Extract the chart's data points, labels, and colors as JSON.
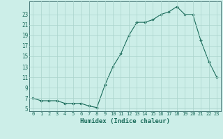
{
  "x": [
    0,
    1,
    2,
    3,
    4,
    5,
    6,
    7,
    8,
    9,
    10,
    11,
    12,
    13,
    14,
    15,
    16,
    17,
    18,
    19,
    20,
    21,
    22,
    23
  ],
  "y": [
    7.0,
    6.5,
    6.5,
    6.5,
    6.0,
    6.0,
    6.0,
    5.5,
    5.2,
    9.5,
    13.0,
    15.5,
    19.0,
    21.5,
    21.5,
    22.0,
    23.0,
    23.5,
    24.5,
    23.0,
    23.0,
    18.0,
    14.0,
    11.0
  ],
  "line_color": "#1a6b5a",
  "marker": "D",
  "marker_size": 2.0,
  "xlabel": "Humidex (Indice chaleur)",
  "ylim": [
    4.5,
    25.5
  ],
  "xlim": [
    -0.5,
    23.5
  ],
  "yticks": [
    5,
    7,
    9,
    11,
    13,
    15,
    17,
    19,
    21,
    23
  ],
  "xticks": [
    0,
    1,
    2,
    3,
    4,
    5,
    6,
    7,
    8,
    9,
    10,
    11,
    12,
    13,
    14,
    15,
    16,
    17,
    18,
    19,
    20,
    21,
    22,
    23
  ],
  "bg_color": "#cceee8",
  "grid_color": "#aad4cc",
  "axis_color": "#336666",
  "tick_color": "#1a6b5a",
  "font_color": "#1a6b5a"
}
